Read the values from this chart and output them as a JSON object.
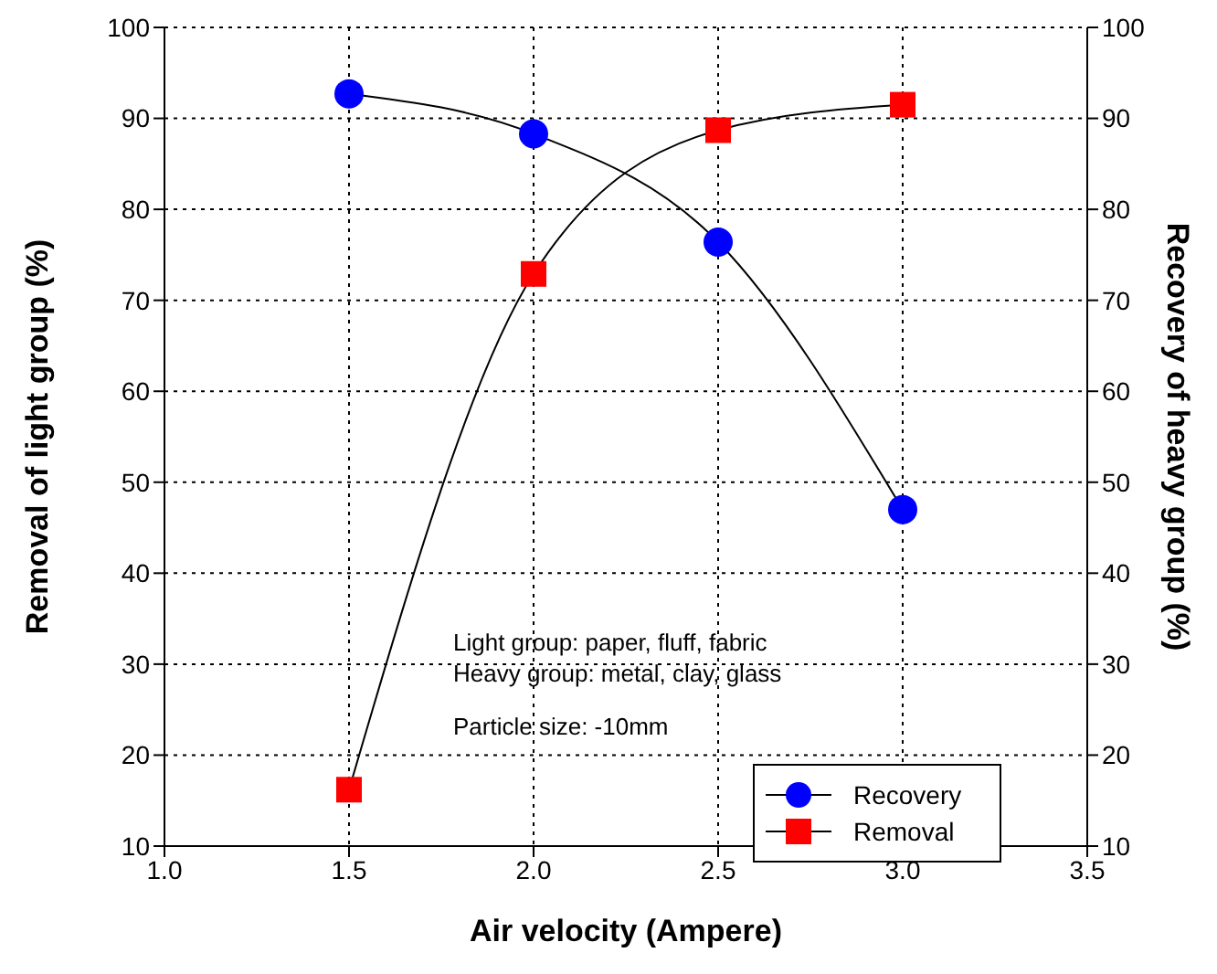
{
  "chart_data": {
    "type": "line",
    "xlabel": "Air velocity (Ampere)",
    "ylabel": "Removal of light group (%)",
    "y2label": "Recovery of heavy group (%)",
    "x": [
      1.5,
      2.0,
      2.5,
      3.0
    ],
    "series": [
      {
        "name": "Recovery",
        "color": "#0000ff",
        "marker": "circle",
        "axis": "y2",
        "values": [
          92.7,
          88.3,
          76.4,
          47.0
        ]
      },
      {
        "name": "Removal",
        "color": "#ff0000",
        "marker": "square",
        "values": [
          16.2,
          72.9,
          88.7,
          91.5
        ]
      }
    ],
    "xlim": [
      1.0,
      3.5
    ],
    "xticks": [
      {
        "value": 1.0,
        "label": "1.0"
      },
      {
        "value": 1.5,
        "label": "1.5"
      },
      {
        "value": 2.0,
        "label": "2.0"
      },
      {
        "value": 2.5,
        "label": "2.5"
      },
      {
        "value": 3.0,
        "label": "3.0"
      },
      {
        "value": 3.5,
        "label": "3.5"
      }
    ],
    "ylim": [
      10,
      100
    ],
    "yticks": [
      10,
      20,
      30,
      40,
      50,
      60,
      70,
      80,
      90,
      100
    ],
    "y2lim": [
      10,
      100
    ],
    "y2ticks": [
      10,
      20,
      30,
      40,
      50,
      60,
      70,
      80,
      90,
      100
    ],
    "grid": true,
    "legend": "bottom right",
    "line_style": "solid",
    "annotations": [
      "Light group: paper, fluff, fabric",
      "Heavy group: metal, clay, glass",
      "Particle size: -10mm"
    ]
  }
}
